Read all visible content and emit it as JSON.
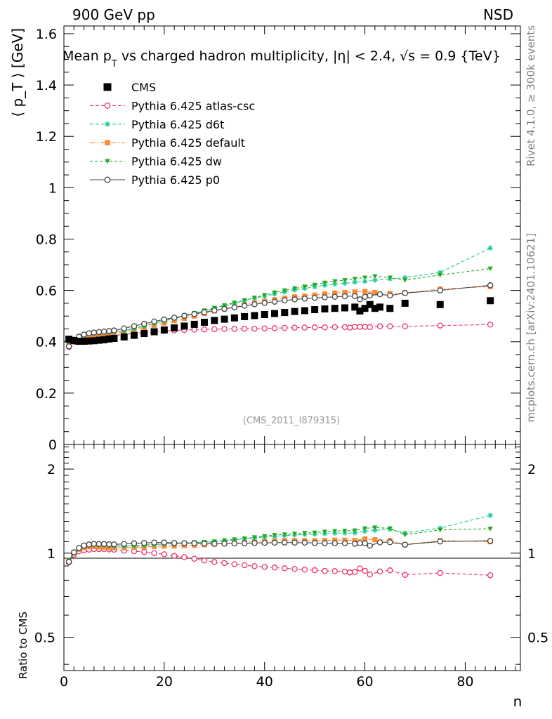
{
  "header": {
    "left": "900 GeV pp",
    "right": "NSD",
    "title_main": "Mean p",
    "title_sub": "T",
    "title_rest": " vs charged hadron multiplicity, |η| < 2.4, √s = 0.9 {TeV}",
    "analysis_id": "(CMS_2011_I879315)"
  },
  "side_text": {
    "rivet": "Rivet 4.1.0, ≥ 300k events",
    "mcplots": "mcplots.cern.ch [arXiv:2401.10621]"
  },
  "axes": {
    "x_label": "n",
    "y_label": "⟨ p_T ⟩ [GeV]",
    "ratio_label": "Ratio to CMS",
    "x_ticks": [
      "0",
      "20",
      "40",
      "60",
      "80"
    ],
    "y_ticks": [
      "0",
      "0.2",
      "0.4",
      "0.6",
      "0.8",
      "1",
      "1.2",
      "1.4",
      "1.6"
    ],
    "ratio_ticks": [
      "0.5",
      "1",
      "2"
    ]
  },
  "legend": [
    {
      "label": "CMS",
      "color": "#000000",
      "marker": "square-filled"
    },
    {
      "label": "Pythia 6.425 atlas-csc",
      "color": "#ee3366",
      "marker": "circle-open"
    },
    {
      "label": "Pythia 6.425 d6t",
      "color": "#22cc99",
      "marker": "star"
    },
    {
      "label": "Pythia 6.425 default",
      "color": "#ff8833",
      "marker": "square-filled"
    },
    {
      "label": "Pythia 6.425 dw",
      "color": "#22aa22",
      "marker": "triangle-down"
    },
    {
      "label": "Pythia 6.425 p0",
      "color": "#444444",
      "marker": "circle-open"
    }
  ],
  "chart_data": {
    "type": "scatter",
    "title": "Mean pT vs charged hadron multiplicity, |η| < 2.4, √s = 0.9 {TeV}",
    "xlabel": "n",
    "ylabel": "⟨ pT ⟩ [GeV]",
    "xlim": [
      0,
      91
    ],
    "ylim": [
      0,
      1.63
    ],
    "ratio_ylim": [
      0.38,
      2.45
    ],
    "series": [
      {
        "name": "CMS",
        "x": [
          1,
          2,
          3,
          4,
          5,
          6,
          7,
          8,
          9,
          10,
          12,
          14,
          16,
          18,
          20,
          22,
          24,
          26,
          28,
          30,
          32,
          34,
          36,
          38,
          40,
          42,
          44,
          46,
          48,
          50,
          52,
          54,
          56,
          58,
          59,
          60,
          61,
          62,
          63,
          65,
          68,
          75,
          85
        ],
        "values": [
          0.41,
          0.405,
          0.402,
          0.402,
          0.403,
          0.404,
          0.406,
          0.408,
          0.411,
          0.413,
          0.419,
          0.425,
          0.432,
          0.439,
          0.446,
          0.454,
          0.461,
          0.468,
          0.476,
          0.483,
          0.488,
          0.493,
          0.498,
          0.502,
          0.506,
          0.51,
          0.514,
          0.518,
          0.521,
          0.525,
          0.528,
          0.53,
          0.532,
          0.535,
          0.52,
          0.53,
          0.545,
          0.53,
          0.535,
          0.53,
          0.55,
          0.545,
          0.56
        ]
      },
      {
        "name": "Pythia 6.425 atlas-csc",
        "x": [
          1,
          2,
          3,
          4,
          5,
          6,
          7,
          8,
          9,
          10,
          12,
          14,
          16,
          18,
          20,
          22,
          24,
          26,
          28,
          30,
          32,
          34,
          36,
          38,
          40,
          42,
          44,
          46,
          48,
          50,
          52,
          54,
          56,
          57,
          58,
          59,
          60,
          61,
          63,
          65,
          68,
          75,
          85
        ],
        "values": [
          0.38,
          0.4,
          0.408,
          0.412,
          0.415,
          0.418,
          0.42,
          0.422,
          0.424,
          0.425,
          0.428,
          0.432,
          0.436,
          0.439,
          0.442,
          0.444,
          0.446,
          0.447,
          0.448,
          0.449,
          0.45,
          0.45,
          0.451,
          0.451,
          0.452,
          0.453,
          0.454,
          0.455,
          0.455,
          0.456,
          0.456,
          0.457,
          0.457,
          0.455,
          0.458,
          0.458,
          0.458,
          0.457,
          0.46,
          0.46,
          0.46,
          0.463,
          0.467
        ]
      },
      {
        "name": "Pythia 6.425 d6t",
        "x": [
          1,
          2,
          3,
          4,
          5,
          6,
          7,
          8,
          9,
          10,
          12,
          14,
          16,
          18,
          20,
          22,
          24,
          26,
          28,
          30,
          32,
          34,
          36,
          38,
          40,
          42,
          44,
          46,
          48,
          50,
          52,
          54,
          56,
          58,
          60,
          62,
          65,
          68,
          75,
          85
        ],
        "values": [
          0.385,
          0.405,
          0.416,
          0.424,
          0.43,
          0.433,
          0.435,
          0.436,
          0.437,
          0.438,
          0.443,
          0.451,
          0.461,
          0.471,
          0.481,
          0.49,
          0.5,
          0.51,
          0.52,
          0.53,
          0.54,
          0.55,
          0.56,
          0.57,
          0.578,
          0.586,
          0.594,
          0.602,
          0.608,
          0.614,
          0.62,
          0.625,
          0.628,
          0.632,
          0.635,
          0.64,
          0.645,
          0.65,
          0.67,
          0.765
        ]
      },
      {
        "name": "Pythia 6.425 default",
        "x": [
          1,
          2,
          3,
          4,
          5,
          6,
          7,
          8,
          9,
          10,
          12,
          14,
          16,
          18,
          20,
          22,
          24,
          26,
          28,
          30,
          32,
          34,
          36,
          38,
          40,
          42,
          44,
          46,
          48,
          50,
          52,
          54,
          56,
          58,
          60,
          62,
          65,
          68,
          75,
          85
        ],
        "values": [
          0.385,
          0.405,
          0.415,
          0.421,
          0.425,
          0.427,
          0.428,
          0.429,
          0.43,
          0.432,
          0.438,
          0.446,
          0.455,
          0.464,
          0.473,
          0.482,
          0.491,
          0.5,
          0.51,
          0.52,
          0.528,
          0.536,
          0.544,
          0.552,
          0.558,
          0.564,
          0.57,
          0.575,
          0.578,
          0.582,
          0.586,
          0.59,
          0.592,
          0.594,
          0.596,
          0.592,
          0.588,
          0.59,
          0.605,
          0.615
        ]
      },
      {
        "name": "Pythia 6.425 dw",
        "x": [
          1,
          2,
          3,
          4,
          5,
          6,
          7,
          8,
          9,
          10,
          12,
          14,
          16,
          18,
          20,
          22,
          24,
          26,
          28,
          30,
          32,
          34,
          36,
          38,
          40,
          42,
          44,
          46,
          48,
          50,
          52,
          54,
          56,
          58,
          60,
          62,
          65,
          68,
          75,
          85
        ],
        "values": [
          0.388,
          0.408,
          0.418,
          0.425,
          0.43,
          0.433,
          0.434,
          0.435,
          0.436,
          0.438,
          0.444,
          0.452,
          0.462,
          0.472,
          0.482,
          0.492,
          0.502,
          0.512,
          0.522,
          0.532,
          0.542,
          0.552,
          0.562,
          0.572,
          0.582,
          0.592,
          0.6,
          0.608,
          0.615,
          0.622,
          0.63,
          0.636,
          0.64,
          0.645,
          0.65,
          0.655,
          0.65,
          0.64,
          0.66,
          0.685
        ]
      },
      {
        "name": "Pythia 6.425 p0",
        "x": [
          1,
          2,
          3,
          4,
          5,
          6,
          7,
          8,
          9,
          10,
          12,
          14,
          16,
          18,
          20,
          22,
          24,
          26,
          28,
          30,
          32,
          34,
          36,
          38,
          40,
          42,
          44,
          46,
          48,
          50,
          52,
          54,
          56,
          58,
          59,
          60,
          61,
          63,
          65,
          68,
          75,
          85
        ],
        "values": [
          0.382,
          0.408,
          0.42,
          0.428,
          0.433,
          0.436,
          0.438,
          0.44,
          0.442,
          0.444,
          0.452,
          0.461,
          0.47,
          0.479,
          0.487,
          0.494,
          0.501,
          0.508,
          0.515,
          0.522,
          0.528,
          0.534,
          0.54,
          0.546,
          0.551,
          0.556,
          0.561,
          0.565,
          0.568,
          0.571,
          0.573,
          0.575,
          0.577,
          0.578,
          0.565,
          0.575,
          0.58,
          0.585,
          0.58,
          0.59,
          0.6,
          0.62
        ]
      }
    ]
  }
}
